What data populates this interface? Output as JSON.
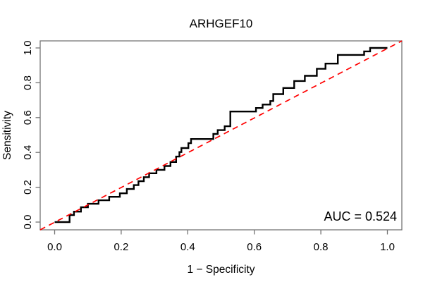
{
  "chart_data": {
    "type": "line",
    "subtype": "roc-step-curve",
    "title": "ARHGEF10",
    "xlabel": "1 − Specificity",
    "ylabel": "Sensitivity",
    "annotation": "AUC = 0.524",
    "auc": 0.524,
    "xlim": [
      0,
      1
    ],
    "ylim": [
      0,
      1
    ],
    "grid": false,
    "legend": "none",
    "frame_color": "#757575",
    "text_color": "#000000",
    "x_ticks": {
      "values": [
        0,
        0.2,
        0.4,
        0.6,
        0.8,
        1.0
      ],
      "labels": [
        "0.0",
        "0.2",
        "0.4",
        "0.6",
        "0.8",
        "1.0"
      ]
    },
    "y_ticks": {
      "values": [
        0,
        0.2,
        0.4,
        0.6,
        0.8,
        1.0
      ],
      "labels": [
        "0.0",
        "0.2",
        "0.4",
        "0.6",
        "0.8",
        "1.0"
      ]
    },
    "series": [
      {
        "name": "ROC curve",
        "color": "#000000",
        "width": 2.4,
        "style": "solid",
        "points": [
          [
            0.0,
            0.0
          ],
          [
            0.045,
            0.0
          ],
          [
            0.045,
            0.04
          ],
          [
            0.058,
            0.04
          ],
          [
            0.058,
            0.06
          ],
          [
            0.079,
            0.06
          ],
          [
            0.079,
            0.085
          ],
          [
            0.1,
            0.085
          ],
          [
            0.1,
            0.105
          ],
          [
            0.132,
            0.105
          ],
          [
            0.132,
            0.125
          ],
          [
            0.164,
            0.125
          ],
          [
            0.164,
            0.145
          ],
          [
            0.196,
            0.145
          ],
          [
            0.196,
            0.165
          ],
          [
            0.217,
            0.165
          ],
          [
            0.217,
            0.19
          ],
          [
            0.238,
            0.19
          ],
          [
            0.238,
            0.212
          ],
          [
            0.252,
            0.212
          ],
          [
            0.252,
            0.235
          ],
          [
            0.268,
            0.235
          ],
          [
            0.268,
            0.258
          ],
          [
            0.284,
            0.258
          ],
          [
            0.284,
            0.28
          ],
          [
            0.306,
            0.28
          ],
          [
            0.306,
            0.3
          ],
          [
            0.33,
            0.3
          ],
          [
            0.33,
            0.322
          ],
          [
            0.348,
            0.322
          ],
          [
            0.348,
            0.345
          ],
          [
            0.365,
            0.345
          ],
          [
            0.365,
            0.376
          ],
          [
            0.375,
            0.376
          ],
          [
            0.375,
            0.402
          ],
          [
            0.381,
            0.402
          ],
          [
            0.381,
            0.425
          ],
          [
            0.402,
            0.425
          ],
          [
            0.402,
            0.453
          ],
          [
            0.41,
            0.453
          ],
          [
            0.41,
            0.477
          ],
          [
            0.477,
            0.477
          ],
          [
            0.477,
            0.506
          ],
          [
            0.49,
            0.506
          ],
          [
            0.49,
            0.528
          ],
          [
            0.511,
            0.528
          ],
          [
            0.511,
            0.55
          ],
          [
            0.528,
            0.55
          ],
          [
            0.528,
            0.635
          ],
          [
            0.605,
            0.635
          ],
          [
            0.605,
            0.655
          ],
          [
            0.625,
            0.655
          ],
          [
            0.625,
            0.675
          ],
          [
            0.648,
            0.675
          ],
          [
            0.648,
            0.695
          ],
          [
            0.657,
            0.695
          ],
          [
            0.657,
            0.735
          ],
          [
            0.687,
            0.735
          ],
          [
            0.687,
            0.77
          ],
          [
            0.72,
            0.77
          ],
          [
            0.72,
            0.81
          ],
          [
            0.752,
            0.81
          ],
          [
            0.752,
            0.84
          ],
          [
            0.788,
            0.84
          ],
          [
            0.788,
            0.88
          ],
          [
            0.814,
            0.88
          ],
          [
            0.814,
            0.91
          ],
          [
            0.851,
            0.91
          ],
          [
            0.851,
            0.96
          ],
          [
            0.93,
            0.96
          ],
          [
            0.93,
            0.98
          ],
          [
            0.948,
            0.98
          ],
          [
            0.948,
            1.0
          ],
          [
            1.0,
            1.0
          ]
        ]
      },
      {
        "name": "Reference diagonal",
        "color": "#ff0000",
        "width": 1.7,
        "style": "dashed",
        "dash": "8 6",
        "extend_to_box": true,
        "points": [
          [
            0,
            0
          ],
          [
            1,
            1
          ]
        ]
      }
    ]
  }
}
